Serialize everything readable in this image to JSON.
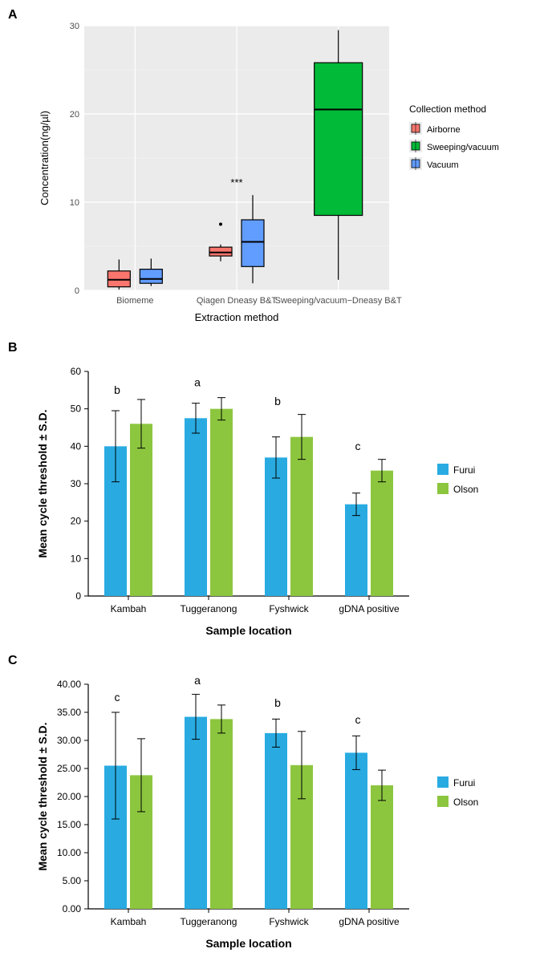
{
  "panelA": {
    "label": "A",
    "type": "boxplot_grouped",
    "background_color": "#ebebeb",
    "grid_color": "#ffffff",
    "x_title": "Extraction method",
    "y_title": "Concentration(ng/µl)",
    "ylim": [
      0,
      30
    ],
    "ytick_step": 10,
    "x_categories": [
      "Biomeme",
      "Qiagen Dneasy B&T",
      "Sweeping/vacuum-Dneasy B&T"
    ],
    "x_category_short": [
      "Biomeme",
      "Qiagen Dneasy B&T",
      "Sweeping/vacuum−Dneasy B&T"
    ],
    "legend_title": "Collection method",
    "legend_items": [
      {
        "label": "Airborne",
        "color": "#f8766d"
      },
      {
        "label": "Sweeping/vacuum",
        "color": "#00ba38"
      },
      {
        "label": "Vacuum",
        "color": "#619cff"
      }
    ],
    "boxes": [
      {
        "cat": 0,
        "group": 0,
        "color": "#f8766d",
        "q1": 0.4,
        "median": 1.2,
        "q3": 2.2,
        "wmin": 0.1,
        "wmax": 3.5,
        "outliers": []
      },
      {
        "cat": 0,
        "group": 2,
        "color": "#619cff",
        "q1": 0.8,
        "median": 1.3,
        "q3": 2.4,
        "wmin": 0.5,
        "wmax": 3.6,
        "outliers": []
      },
      {
        "cat": 1,
        "group": 0,
        "color": "#f8766d",
        "q1": 3.9,
        "median": 4.3,
        "q3": 4.9,
        "wmin": 3.3,
        "wmax": 5.2,
        "outliers": [
          7.5
        ]
      },
      {
        "cat": 1,
        "group": 2,
        "color": "#619cff",
        "q1": 2.7,
        "median": 5.5,
        "q3": 8.0,
        "wmin": 0.8,
        "wmax": 10.8,
        "outliers": []
      },
      {
        "cat": 2,
        "group": 1,
        "color": "#00ba38",
        "q1": 8.5,
        "median": 20.5,
        "q3": 25.8,
        "wmin": 1.2,
        "wmax": 29.5,
        "outliers": []
      }
    ],
    "significance": [
      {
        "cat": 1,
        "y": 12,
        "text": "***"
      },
      {
        "cat": 2,
        "y": 31,
        "text": "***"
      }
    ]
  },
  "panelB": {
    "label": "B",
    "type": "bar_grouped",
    "x_title": "Sample location",
    "y_title": "Mean cycle threshold ± S.D.",
    "ylim": [
      0,
      60
    ],
    "ytick_step": 10,
    "x_categories": [
      "Kambah",
      "Tuggeranong",
      "Fyshwick",
      "gDNA positive"
    ],
    "legend": [
      {
        "label": "Furui",
        "color": "#29abe2"
      },
      {
        "label": "Olson",
        "color": "#8cc63f"
      }
    ],
    "bars": [
      {
        "cat": 0,
        "series": 0,
        "value": 40,
        "err": 9.5
      },
      {
        "cat": 0,
        "series": 1,
        "value": 46,
        "err": 6.5
      },
      {
        "cat": 1,
        "series": 0,
        "value": 47.5,
        "err": 4
      },
      {
        "cat": 1,
        "series": 1,
        "value": 50,
        "err": 3
      },
      {
        "cat": 2,
        "series": 0,
        "value": 37,
        "err": 5.5
      },
      {
        "cat": 2,
        "series": 1,
        "value": 42.5,
        "err": 6
      },
      {
        "cat": 3,
        "series": 0,
        "value": 24.5,
        "err": 3
      },
      {
        "cat": 3,
        "series": 1,
        "value": 33.5,
        "err": 3
      }
    ],
    "letters": [
      {
        "cat": 0,
        "y": 54,
        "text": "b"
      },
      {
        "cat": 1,
        "y": 56,
        "text": "a"
      },
      {
        "cat": 2,
        "y": 51,
        "text": "b"
      },
      {
        "cat": 3,
        "y": 39,
        "text": "c"
      }
    ]
  },
  "panelC": {
    "label": "C",
    "type": "bar_grouped",
    "x_title": "Sample location",
    "y_title": "Mean cycle  threshold ± S.D.",
    "ylim": [
      0,
      40
    ],
    "ytick_step": 5,
    "decimals": 2,
    "x_categories": [
      "Kambah",
      "Tuggeranong",
      "Fyshwick",
      "gDNA positive"
    ],
    "legend": [
      {
        "label": "Furui",
        "color": "#29abe2"
      },
      {
        "label": "Olson",
        "color": "#8cc63f"
      }
    ],
    "bars": [
      {
        "cat": 0,
        "series": 0,
        "value": 25.5,
        "err": 9.5
      },
      {
        "cat": 0,
        "series": 1,
        "value": 23.8,
        "err": 6.5
      },
      {
        "cat": 1,
        "series": 0,
        "value": 34.2,
        "err": 4
      },
      {
        "cat": 1,
        "series": 1,
        "value": 33.8,
        "err": 2.5
      },
      {
        "cat": 2,
        "series": 0,
        "value": 31.3,
        "err": 2.5
      },
      {
        "cat": 2,
        "series": 1,
        "value": 25.6,
        "err": 6
      },
      {
        "cat": 3,
        "series": 0,
        "value": 27.8,
        "err": 3
      },
      {
        "cat": 3,
        "series": 1,
        "value": 22,
        "err": 2.7
      }
    ],
    "letters": [
      {
        "cat": 0,
        "y": 37,
        "text": "c"
      },
      {
        "cat": 1,
        "y": 40,
        "text": "a"
      },
      {
        "cat": 2,
        "y": 36,
        "text": "b"
      },
      {
        "cat": 3,
        "y": 33,
        "text": "c"
      }
    ]
  }
}
